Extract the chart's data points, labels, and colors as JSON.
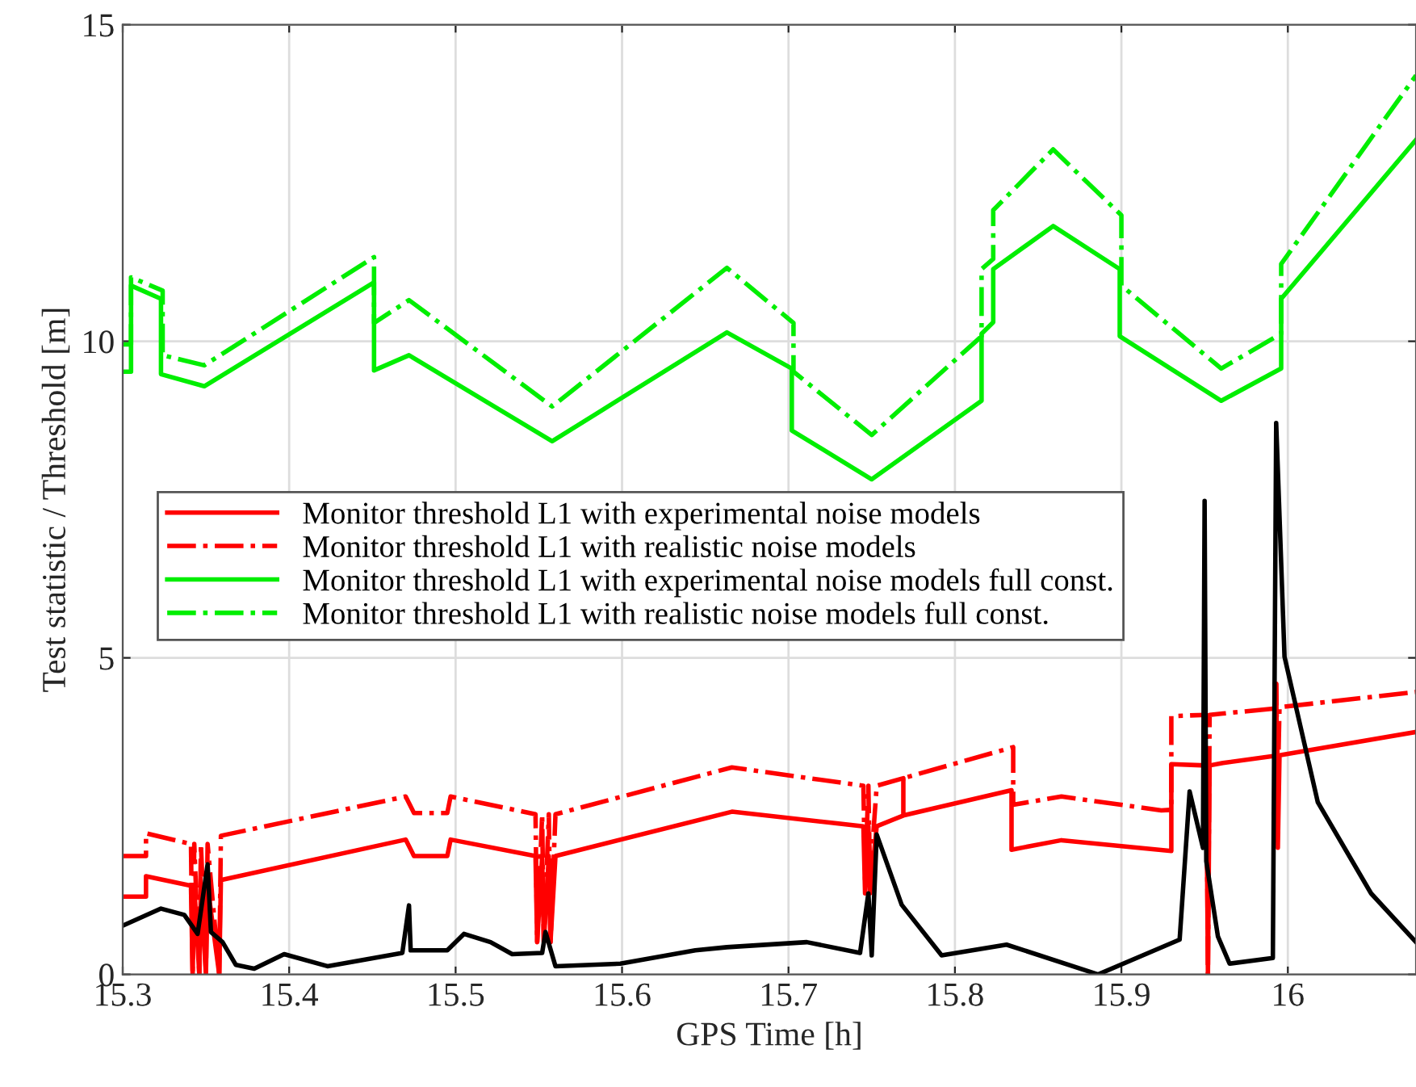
{
  "chart_data": {
    "type": "line",
    "xlabel": "GPS Time [h]",
    "ylabel": "Test statistic / Threshold [m]",
    "xlim": [
      15.3,
      16.077
    ],
    "ylim": [
      0,
      15
    ],
    "xticks": [
      15.3,
      15.4,
      15.5,
      15.6,
      15.7,
      15.8,
      15.9,
      16
    ],
    "yticks": [
      0,
      5,
      10,
      15
    ],
    "grid": true,
    "legend": "center left",
    "marker": "none",
    "series": [
      {
        "name": "Monitor threshold L1 with experimental noise models",
        "color": "#ff0000",
        "line_style": "solid",
        "x": [
          15.3,
          15.314,
          15.314,
          15.341,
          15.342,
          15.343,
          15.346,
          15.347,
          15.35,
          15.351,
          15.358,
          15.359,
          15.47,
          15.475,
          15.495,
          15.497,
          15.548,
          15.549,
          15.552,
          15.553,
          15.556,
          15.557,
          15.56,
          15.666,
          15.745,
          15.746,
          15.748,
          15.749,
          15.753,
          15.769,
          15.769,
          15.769,
          15.834,
          15.834,
          15.864,
          15.93,
          15.93,
          15.951,
          15.952,
          15.953,
          15.961,
          15.992,
          15.993,
          15.994,
          15.995,
          16.077
        ],
        "values": [
          1.23,
          1.23,
          1.55,
          1.4,
          0,
          1.4,
          0,
          1.4,
          0,
          1.4,
          0,
          1.49,
          2.13,
          1.87,
          1.87,
          2.13,
          1.87,
          0.51,
          1.87,
          0.51,
          1.87,
          0.51,
          1.87,
          2.57,
          2.34,
          1.28,
          2.34,
          1.28,
          2.34,
          2.51,
          3.06,
          2.51,
          2.91,
          1.97,
          2.12,
          1.95,
          3.32,
          3.3,
          0,
          3.3,
          3.34,
          3.45,
          4.59,
          2.0,
          3.46,
          3.83
        ]
      },
      {
        "name": "Monitor threshold L1 with realistic noise models",
        "color": "#ff0000",
        "line_style": "dashdot",
        "x": [
          15.3,
          15.314,
          15.314,
          15.341,
          15.342,
          15.343,
          15.346,
          15.347,
          15.35,
          15.351,
          15.358,
          15.359,
          15.47,
          15.475,
          15.495,
          15.497,
          15.548,
          15.549,
          15.552,
          15.553,
          15.556,
          15.557,
          15.56,
          15.666,
          15.745,
          15.746,
          15.748,
          15.749,
          15.753,
          15.769,
          15.769,
          15.769,
          15.835,
          15.835,
          15.864,
          15.924,
          15.93,
          15.93,
          15.951,
          15.952,
          15.953,
          15.961,
          15.992,
          15.993,
          15.994,
          15.995,
          16.077
        ],
        "values": [
          1.87,
          1.87,
          2.23,
          2.06,
          0,
          2.06,
          0,
          2.06,
          0,
          2.06,
          0,
          2.19,
          2.81,
          2.55,
          2.55,
          2.81,
          2.53,
          0.51,
          2.53,
          0.51,
          2.53,
          0.51,
          2.53,
          3.27,
          2.98,
          1.5,
          2.98,
          1.5,
          2.98,
          3.1,
          3.06,
          3.1,
          3.59,
          2.68,
          2.81,
          2.59,
          2.6,
          4.08,
          4.1,
          0,
          4.1,
          4.12,
          4.2,
          4.59,
          3.0,
          4.22,
          4.46
        ]
      },
      {
        "name": "Monitor threshold L1 with experimental noise models full const.",
        "color": "#00ee00",
        "line_style": "solid",
        "x": [
          15.3,
          15.305,
          15.305,
          15.323,
          15.323,
          15.349,
          15.451,
          15.451,
          15.472,
          15.558,
          15.663,
          15.702,
          15.702,
          15.75,
          15.816,
          15.816,
          15.823,
          15.823,
          15.859,
          15.899,
          15.899,
          15.96,
          15.996,
          15.996,
          16.077
        ],
        "values": [
          9.52,
          9.52,
          10.88,
          10.67,
          9.48,
          9.29,
          10.93,
          9.54,
          9.78,
          8.42,
          10.14,
          9.57,
          8.59,
          7.82,
          9.06,
          10.12,
          10.3,
          11.14,
          11.82,
          11.14,
          10.08,
          9.06,
          9.57,
          10.67,
          13.18
        ]
      },
      {
        "name": "Monitor threshold L1 with realistic noise models full const.",
        "color": "#00ee00",
        "line_style": "dashdot",
        "x": [
          15.3,
          15.305,
          15.305,
          15.324,
          15.324,
          15.349,
          15.451,
          15.451,
          15.472,
          15.558,
          15.663,
          15.703,
          15.703,
          15.75,
          15.816,
          15.816,
          15.823,
          15.823,
          15.859,
          15.9,
          15.9,
          15.96,
          15.996,
          15.996,
          16.077
        ],
        "values": [
          9.95,
          9.95,
          11.01,
          10.8,
          9.78,
          9.62,
          11.33,
          10.29,
          10.65,
          8.97,
          11.16,
          10.29,
          9.52,
          8.52,
          10.08,
          11.14,
          11.3,
          12.07,
          13.03,
          11.99,
          10.88,
          9.57,
          10.12,
          11.22,
          14.2
        ]
      },
      {
        "color": "#000000",
        "line_style": "solid",
        "x": [
          15.3,
          15.323,
          15.337,
          15.345,
          15.351,
          15.353,
          15.36,
          15.368,
          15.379,
          15.397,
          15.423,
          15.468,
          15.472,
          15.473,
          15.495,
          15.505,
          15.521,
          15.534,
          15.552,
          15.554,
          15.56,
          15.599,
          15.644,
          15.663,
          15.711,
          15.743,
          15.748,
          15.75,
          15.753,
          15.768,
          15.792,
          15.831,
          15.886,
          15.935,
          15.941,
          15.949,
          15.95,
          15.951,
          15.958,
          15.965,
          15.991,
          15.993,
          15.998,
          16.018,
          16.05,
          16.077
        ],
        "values": [
          0.77,
          1.04,
          0.94,
          0.64,
          1.74,
          0.67,
          0.51,
          0.15,
          0.09,
          0.32,
          0.13,
          0.34,
          1.09,
          0.38,
          0.38,
          0.64,
          0.51,
          0.32,
          0.34,
          0.67,
          0.13,
          0.17,
          0.38,
          0.43,
          0.51,
          0.34,
          1.28,
          0.3,
          2.21,
          1.1,
          0.3,
          0.47,
          0.0,
          0.55,
          2.89,
          2.0,
          7.48,
          1.79,
          0.6,
          0.17,
          0.26,
          8.71,
          5.02,
          2.72,
          1.28,
          0.51
        ]
      }
    ]
  }
}
